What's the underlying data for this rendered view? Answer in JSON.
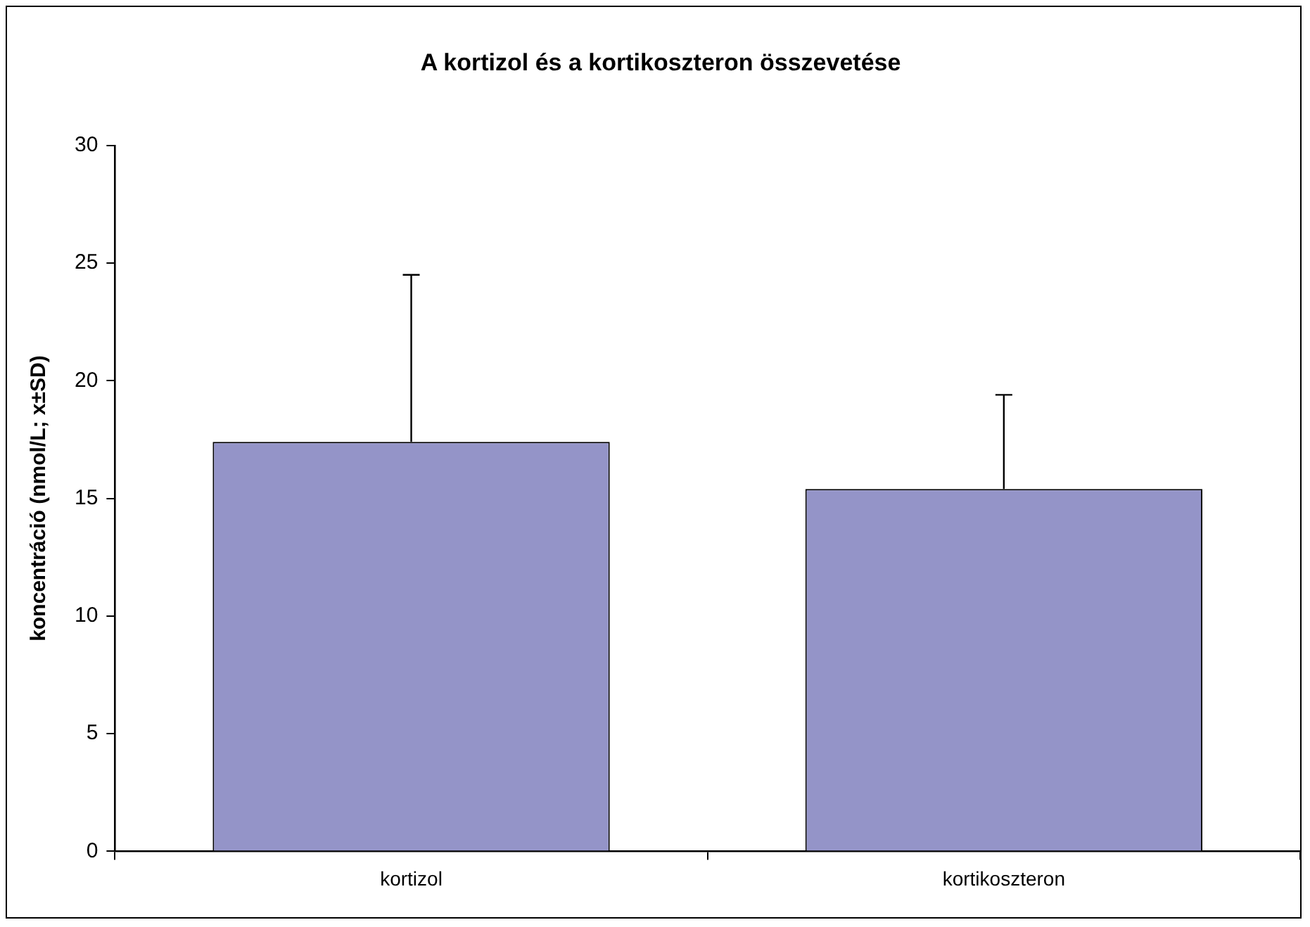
{
  "chart_data": {
    "type": "bar",
    "title": "A kortizol és a kortikoszteron összevetése",
    "ylabel": "koncentráció (nmol/L; x±SD)",
    "categories": [
      "kortizol",
      "kortikoszteron"
    ],
    "values": [
      17.4,
      15.4
    ],
    "color": "#9494c8",
    "errors": [
      [
        17.4,
        24.5
      ],
      [
        15.4,
        19.4
      ]
    ],
    "ylim": [
      0,
      30
    ],
    "yticks": [
      0,
      5,
      10,
      15,
      20,
      25,
      30
    ],
    "grid": false,
    "legend": false
  }
}
